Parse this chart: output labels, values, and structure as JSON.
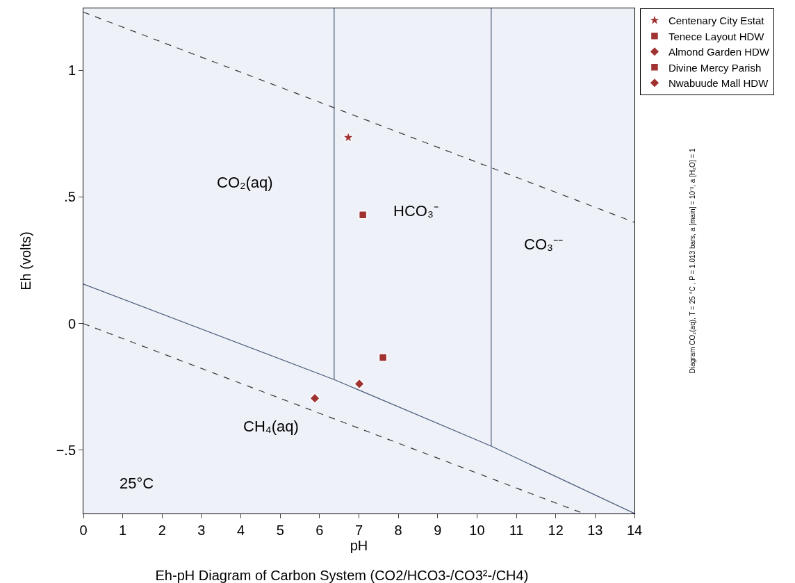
{
  "chart_data": {
    "type": "scatter",
    "title": "Eh-pH Diagram of Carbon System (CO2/HCO3-/CO3²-/CH4)",
    "xlabel": "pH",
    "ylabel": "Eh (volts)",
    "xlim": [
      0,
      14
    ],
    "ylim": [
      -0.75,
      1.245
    ],
    "xticks": [
      0,
      1,
      2,
      3,
      4,
      5,
      6,
      7,
      8,
      9,
      10,
      11,
      12,
      13,
      14
    ],
    "yticks": [
      {
        "value": -0.5,
        "label": "−.5"
      },
      0,
      {
        "value": 0.5,
        "label": ".5"
      },
      1
    ],
    "grid": false,
    "legend": "top right",
    "series": [
      {
        "type": "line",
        "color": "#333333",
        "line_style": "dashed",
        "marker": "none",
        "x": [
          0,
          14
        ],
        "values": [
          1.23,
          0.4
        ]
      },
      {
        "type": "line",
        "color": "#333333",
        "line_style": "dashed",
        "marker": "none",
        "x": [
          0,
          12.62
        ],
        "values": [
          0,
          -0.745
        ]
      },
      {
        "type": "line",
        "color": "#4a5a7a",
        "line_style": "solid",
        "marker": "none",
        "x": [
          0,
          6.37,
          10.36,
          14
        ],
        "values": [
          0.156,
          -0.221,
          -0.484,
          -0.75
        ]
      },
      {
        "type": "line",
        "color": "#4a5a7a",
        "line_style": "solid",
        "marker": "none",
        "x": [
          6.37,
          6.37
        ],
        "values": [
          -0.221,
          1.245
        ]
      },
      {
        "type": "line",
        "color": "#4a5a7a",
        "line_style": "solid",
        "marker": "none",
        "x": [
          10.36,
          10.36
        ],
        "values": [
          -0.484,
          1.245
        ]
      },
      {
        "name": "Centenary City Estat",
        "color": "#a03232",
        "marker": "star",
        "x": [
          6.73
        ],
        "values": [
          0.735
        ]
      },
      {
        "name": "Tenece Layout HDW",
        "color": "#a03232",
        "marker": "square",
        "x": [
          7.1
        ],
        "values": [
          0.429
        ]
      },
      {
        "name": "Almond Garden HDW",
        "color": "#a03232",
        "marker": "diamond",
        "x": [
          7.01
        ],
        "values": [
          -0.238
        ]
      },
      {
        "name": "Divine Mercy Parish",
        "color": "#a03232",
        "marker": "square",
        "x": [
          7.61
        ],
        "values": [
          -0.134
        ]
      },
      {
        "name": "Nwabuude Mall HDW",
        "color": "#a03232",
        "marker": "diamond",
        "x": [
          5.88
        ],
        "values": [
          -0.295
        ]
      }
    ],
    "annotations": [
      "CO₂(aq)",
      "HCO₃⁻",
      "CO₃⁻⁻",
      "CH₄(aq)",
      "25°C",
      "Diagram CO₂(aq), T = 25 °C , P = 1.013 bars, a [main] = 10⁻³, a [H₂O] = 1"
    ]
  }
}
